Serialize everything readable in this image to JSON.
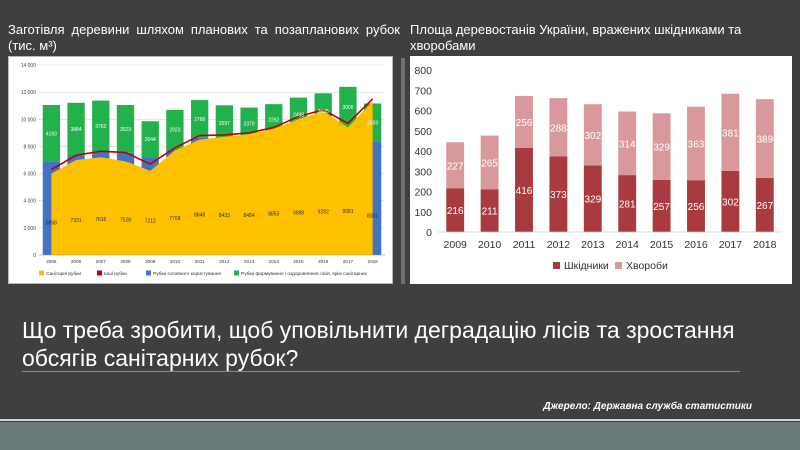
{
  "slide": {
    "question": "Що треба зробити, щоб уповільнити деградацію лісів та зростання обсягів санітарних рубок?",
    "source": "Джерело: Державна служба статистики"
  },
  "colors": {
    "background": "#3f3f3f",
    "sanitary": "#FFC000",
    "other": "#C00000",
    "main_use": "#4472C4",
    "formation": "#22B14C",
    "pests": "#A93A40",
    "diseases": "#D9989B"
  },
  "chart_data": [
    {
      "type": "area",
      "title": "Заготівля деревини шляхом планових та позапланових рубок (тис. м³)",
      "categories": [
        "2005",
        "2006",
        "2007",
        "2008",
        "2009",
        "2010",
        "2011",
        "2012",
        "2013",
        "2014",
        "2015",
        "2016",
        "2017",
        "2018"
      ],
      "ylim": [
        0,
        14000
      ],
      "yticks": [
        "0",
        "2 000",
        "4 000",
        "6 000",
        "8 000",
        "10 000",
        "12 000",
        "14 000"
      ],
      "grid": true,
      "legend_position": "bottom",
      "series": [
        {
          "name": "Санітарні рубки",
          "kind": "area",
          "values": [
            6000,
            7000,
            7200,
            6900,
            6200,
            7700,
            8500,
            8700,
            8900,
            9300,
            10000,
            10600,
            9400,
            11300
          ]
        },
        {
          "name": "Інші рубки",
          "kind": "line",
          "values": [
            6300,
            7350,
            7650,
            7550,
            6700,
            7900,
            8800,
            8850,
            9000,
            9400,
            10200,
            10700,
            9700,
            11500
          ]
        },
        {
          "name": "Рубки головного користування",
          "kind": "bar",
          "values": [
            6858,
            7331,
            7616,
            7528,
            7212,
            7768,
            8648,
            8433,
            8484,
            8853,
            9098,
            9282,
            9391,
            8331
          ]
        },
        {
          "name": "Рубки формування і оздоровлення лісів, крім санітарних",
          "kind": "bar",
          "values": [
            4193,
            3884,
            3762,
            3523,
            2644,
            2923,
            2768,
            2597,
            2379,
            2262,
            2498,
            2635,
            3000,
            2833
          ]
        }
      ]
    },
    {
      "type": "bar",
      "title": "Площа деревостанів України, вражених шкідниками та хворобами",
      "categories": [
        "2009",
        "2010",
        "2011",
        "2012",
        "2013",
        "2014",
        "2015",
        "2016",
        "2017",
        "2018"
      ],
      "ylim": [
        0,
        800
      ],
      "yticks": [
        "0",
        "100",
        "200",
        "300",
        "400",
        "500",
        "600",
        "700",
        "800"
      ],
      "grid": false,
      "legend_position": "bottom",
      "series": [
        {
          "name": "Шкідники",
          "values": [
            216,
            211,
            416,
            373,
            329,
            281,
            257,
            256,
            302,
            267
          ]
        },
        {
          "name": "Хвороби",
          "values": [
            227,
            265,
            256,
            288,
            302,
            314,
            329,
            363,
            381,
            389
          ]
        }
      ]
    }
  ]
}
